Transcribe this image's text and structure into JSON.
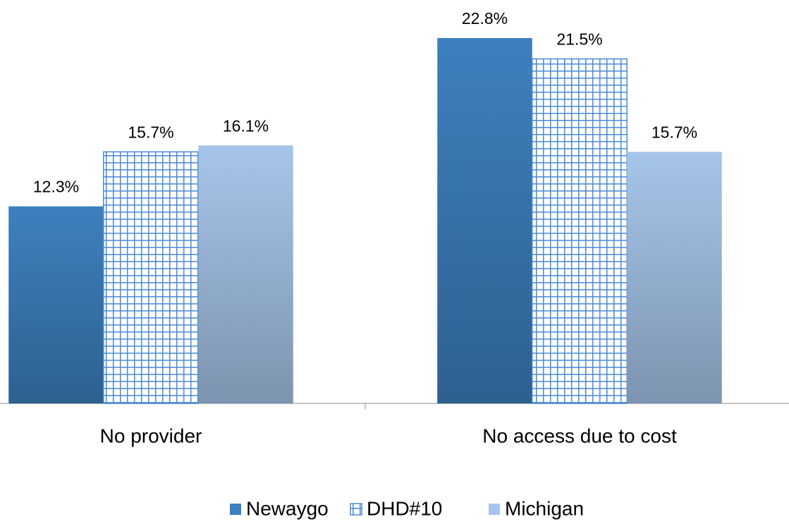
{
  "chart_data": {
    "type": "bar",
    "categories": [
      "No provider",
      "No access due to cost"
    ],
    "series": [
      {
        "name": "Newaygo",
        "color": "#3d80bf",
        "values": [
          12.3,
          22.8
        ],
        "value_labels": [
          "12.3%",
          "22.8%"
        ]
      },
      {
        "name": "DHD#10",
        "color": "#4a8ad2",
        "pattern": "grid",
        "values": [
          15.7,
          21.5
        ],
        "value_labels": [
          "15.7%",
          "21.5%"
        ]
      },
      {
        "name": "Michigan",
        "color": "#a7c5ea",
        "values": [
          16.1,
          15.7
        ],
        "value_labels": [
          "16.1%",
          "15.7%"
        ]
      }
    ],
    "ylim": [
      0,
      25
    ],
    "grid": false,
    "legend": "bottom"
  }
}
